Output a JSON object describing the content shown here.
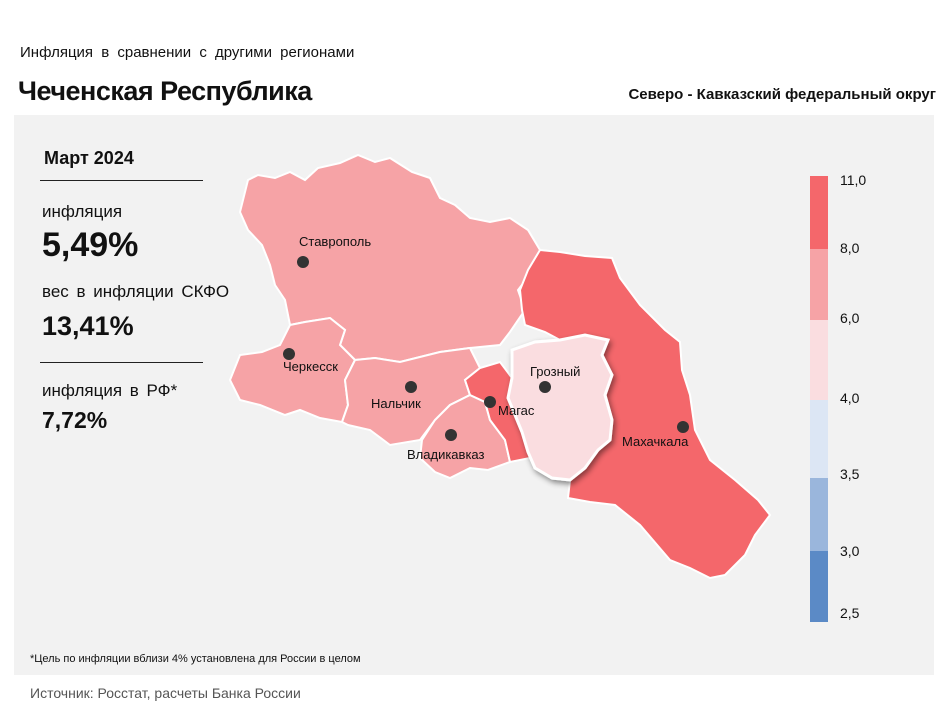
{
  "header": {
    "subtitle": "Инфляция в сравнении с другими регионами",
    "title": "Чеченская Республика",
    "district": "Северо - Кавказский федеральный округ"
  },
  "stats": {
    "period": "Март 2024",
    "inflation_label": "инфляция",
    "inflation_value": "5,49%",
    "weight_label": "вес в инфляции СКФО",
    "weight_value": "13,41%",
    "rf_label": "инфляция в РФ*",
    "rf_value": "7,72%"
  },
  "cities": {
    "stavropol": "Ставрополь",
    "cherkessk": "Черкесск",
    "nalchik": "Нальчик",
    "vladikavkaz": "Владикавказ",
    "magas": "Магас",
    "grozny": "Грозный",
    "makhachkala": "Махачкала"
  },
  "legend": {
    "labels": [
      "11,0",
      "8,0",
      "6,0",
      "4,0",
      "3,5",
      "3,0",
      "2,5"
    ],
    "colors": [
      "#f4676b",
      "#f6a3a6",
      "#fadde0",
      "#dce6f4",
      "#9ab6dc",
      "#5b8ac6"
    ]
  },
  "footnote": "*Цель по инфляции вблизи 4% установлена для России в целом",
  "source": "Источник: Росстат, расчеты Банка России"
}
